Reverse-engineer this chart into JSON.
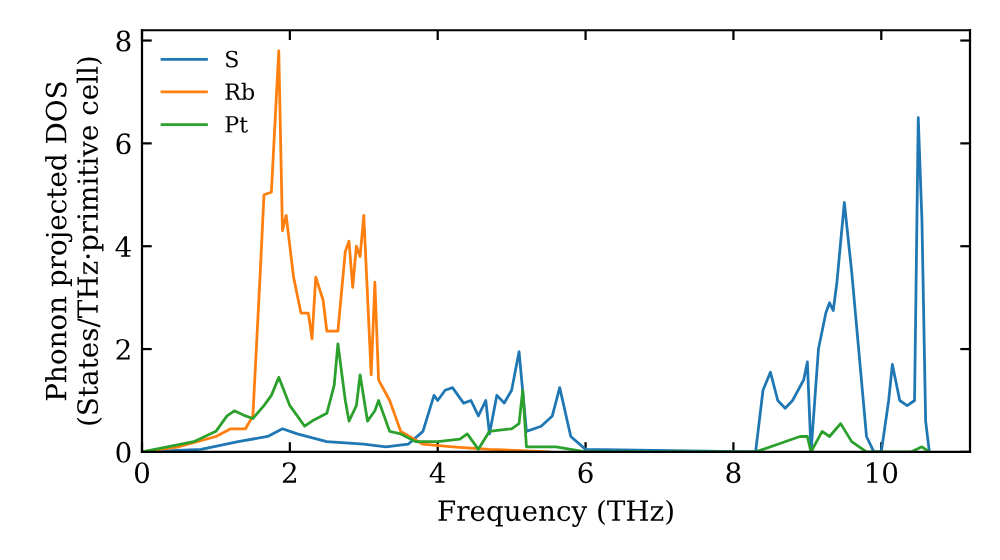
{
  "chart_data": {
    "type": "line",
    "xlabel": "Frequency (THz)",
    "ylabel": "Phonon projected DOS\n(States/THz·primitive cell)",
    "xlim": [
      0,
      11.2
    ],
    "ylim": [
      0,
      8.2
    ],
    "xticks": [
      0,
      2,
      4,
      6,
      8,
      10
    ],
    "yticks": [
      0,
      2,
      4,
      6,
      8
    ],
    "legend": "top left",
    "grid": false,
    "series": [
      {
        "name": "S",
        "color": "#1f77b4",
        "x": [
          0,
          0.8,
          1.3,
          1.7,
          1.9,
          2.1,
          2.5,
          3.0,
          3.3,
          3.6,
          3.8,
          3.95,
          4.0,
          4.1,
          4.2,
          4.35,
          4.45,
          4.55,
          4.65,
          4.7,
          4.8,
          4.9,
          5.0,
          5.1,
          5.2,
          5.4,
          5.55,
          5.65,
          5.8,
          6.0,
          8.3,
          8.4,
          8.5,
          8.6,
          8.7,
          8.8,
          8.95,
          9.0,
          9.05,
          9.15,
          9.25,
          9.3,
          9.35,
          9.4,
          9.5,
          9.6,
          9.65,
          9.8,
          9.9,
          10.0,
          10.1,
          10.15,
          10.25,
          10.35,
          10.45,
          10.5,
          10.55,
          10.6,
          10.65
        ],
        "values": [
          0,
          0.05,
          0.2,
          0.3,
          0.45,
          0.35,
          0.2,
          0.15,
          0.1,
          0.15,
          0.4,
          1.1,
          1.0,
          1.2,
          1.25,
          0.95,
          1.0,
          0.7,
          1.0,
          0.35,
          1.1,
          0.95,
          1.2,
          1.95,
          0.4,
          0.5,
          0.7,
          1.25,
          0.3,
          0.05,
          0,
          1.2,
          1.55,
          1.0,
          0.85,
          1.0,
          1.4,
          1.75,
          0,
          2.0,
          2.7,
          2.9,
          2.75,
          3.3,
          4.85,
          3.5,
          2.7,
          0.3,
          0,
          0,
          1.0,
          1.7,
          1.0,
          0.9,
          1.0,
          6.5,
          4.5,
          0.6,
          0
        ]
      },
      {
        "name": "Rb",
        "color": "#ff7f0e",
        "x": [
          0,
          0.5,
          1.0,
          1.2,
          1.4,
          1.5,
          1.6,
          1.65,
          1.75,
          1.85,
          1.9,
          1.95,
          2.05,
          2.15,
          2.25,
          2.3,
          2.35,
          2.45,
          2.5,
          2.65,
          2.75,
          2.8,
          2.85,
          2.9,
          2.95,
          3.0,
          3.1,
          3.15,
          3.2,
          3.35,
          3.5,
          3.8,
          4.2,
          4.7,
          5.5
        ],
        "values": [
          0,
          0.1,
          0.3,
          0.45,
          0.45,
          0.7,
          3.5,
          5.0,
          5.05,
          7.8,
          4.3,
          4.6,
          3.4,
          2.7,
          2.7,
          2.2,
          3.4,
          2.95,
          2.35,
          2.35,
          3.9,
          4.1,
          3.2,
          4.0,
          3.8,
          4.6,
          1.5,
          3.3,
          1.4,
          1.0,
          0.4,
          0.15,
          0.1,
          0.05,
          0
        ]
      },
      {
        "name": "Pt",
        "color": "#2ca02c",
        "x": [
          0,
          0.7,
          1.0,
          1.15,
          1.25,
          1.4,
          1.5,
          1.65,
          1.75,
          1.85,
          2.0,
          2.1,
          2.2,
          2.3,
          2.5,
          2.6,
          2.65,
          2.75,
          2.8,
          2.9,
          2.95,
          3.05,
          3.15,
          3.2,
          3.35,
          3.5,
          3.7,
          4.0,
          4.3,
          4.4,
          4.55,
          4.7,
          5.0,
          5.1,
          5.15,
          5.2,
          5.6,
          5.8,
          6.0,
          8.3,
          8.6,
          8.9,
          9.0,
          9.05,
          9.2,
          9.3,
          9.45,
          9.6,
          9.8,
          10.4,
          10.55,
          10.65
        ],
        "values": [
          0,
          0.2,
          0.4,
          0.7,
          0.8,
          0.7,
          0.65,
          0.9,
          1.1,
          1.45,
          0.9,
          0.7,
          0.5,
          0.6,
          0.75,
          1.3,
          2.1,
          1.0,
          0.6,
          0.9,
          1.5,
          0.6,
          0.8,
          1.0,
          0.4,
          0.35,
          0.2,
          0.2,
          0.25,
          0.35,
          0.05,
          0.4,
          0.45,
          0.55,
          1.2,
          0.1,
          0.1,
          0.05,
          0,
          0,
          0.15,
          0.3,
          0.3,
          0,
          0.4,
          0.3,
          0.55,
          0.2,
          0,
          0,
          0.1,
          0
        ]
      }
    ]
  }
}
